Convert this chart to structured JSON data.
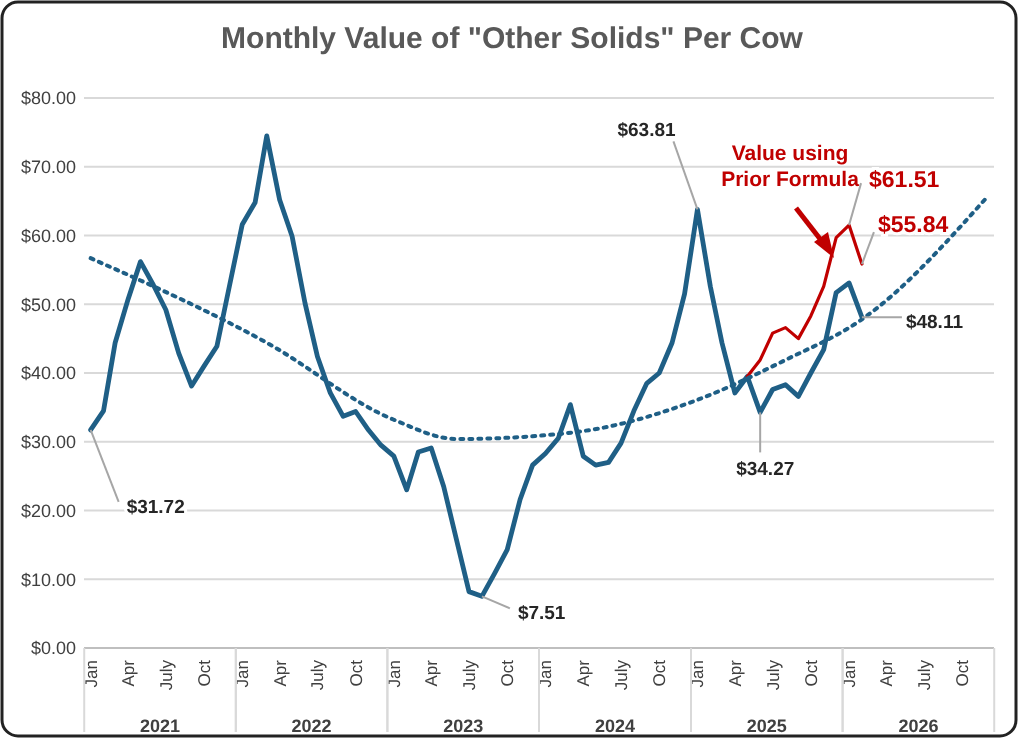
{
  "chart_data": {
    "type": "line",
    "title": "Monthly Value of \"Other Solids\" Per Cow",
    "x": [
      "2021-01",
      "2021-02",
      "2021-03",
      "2021-04",
      "2021-05",
      "2021-06",
      "2021-07",
      "2021-08",
      "2021-09",
      "2021-10",
      "2021-11",
      "2021-12",
      "2022-01",
      "2022-02",
      "2022-03",
      "2022-04",
      "2022-05",
      "2022-06",
      "2022-07",
      "2022-08",
      "2022-09",
      "2022-10",
      "2022-11",
      "2022-12",
      "2023-01",
      "2023-02",
      "2023-03",
      "2023-04",
      "2023-05",
      "2023-06",
      "2023-07",
      "2023-08",
      "2023-09",
      "2023-10",
      "2023-11",
      "2023-12",
      "2024-01",
      "2024-02",
      "2024-03",
      "2024-04",
      "2024-05",
      "2024-06",
      "2024-07",
      "2024-08",
      "2024-09",
      "2024-10",
      "2024-11",
      "2024-12",
      "2025-01",
      "2025-02",
      "2025-03",
      "2025-04",
      "2025-05",
      "2025-06",
      "2025-07",
      "2025-08",
      "2025-09",
      "2025-10",
      "2025-11",
      "2025-12",
      "2026-01",
      "2026-02"
    ],
    "series": [
      {
        "color": "#1f5f86",
        "values": [
          31.72,
          34.5,
          44.4,
          50.7,
          56.2,
          52.8,
          49.2,
          42.9,
          38.1,
          41.0,
          43.9,
          52.6,
          61.6,
          64.8,
          74.5,
          65.2,
          59.9,
          50.2,
          42.4,
          37.1,
          33.7,
          34.4,
          31.7,
          29.5,
          27.9,
          23.0,
          28.5,
          29.1,
          23.5,
          15.7,
          8.2,
          7.51,
          10.9,
          14.3,
          21.6,
          26.6,
          28.3,
          30.5,
          35.4,
          27.9,
          26.6,
          27.0,
          29.8,
          34.5,
          38.5,
          40.0,
          44.4,
          51.5,
          63.81,
          52.6,
          44.4,
          37.1,
          39.5,
          34.27,
          37.6,
          38.3,
          36.6,
          40.0,
          43.4,
          51.7,
          53.1,
          48.11
        ]
      },
      {
        "color": "#c00000",
        "x": [
          "2025-05",
          "2025-06",
          "2025-07",
          "2025-08",
          "2025-09",
          "2025-10",
          "2025-11",
          "2025-12",
          "2026-01",
          "2026-02"
        ],
        "values": [
          39.5,
          41.9,
          45.8,
          46.6,
          45.0,
          48.3,
          52.6,
          59.7,
          61.51,
          55.84
        ]
      },
      {
        "color": "#1f5f86",
        "line_style": "dotted",
        "x": [
          "2021-01",
          "2022-03",
          "2023-01",
          "2023-06",
          "2023-12",
          "2024-06",
          "2025-01",
          "2025-08",
          "2026-02",
          "2026-12"
        ],
        "values": [
          56.7,
          44.4,
          33.2,
          30.4,
          30.8,
          32.2,
          36.1,
          41.9,
          47.8,
          65.7
        ]
      }
    ],
    "xlim": [
      "2020-12-16",
      "2026-12-16"
    ],
    "xticks": [
      {
        "value": "2021-01",
        "label": "Jan"
      },
      {
        "value": "2021-04",
        "label": "Apr"
      },
      {
        "value": "2021-07",
        "label": "July"
      },
      {
        "value": "2021-10",
        "label": "Oct"
      },
      {
        "value": "2022-01",
        "label": "Jan"
      },
      {
        "value": "2022-04",
        "label": "Apr"
      },
      {
        "value": "2022-07",
        "label": "July"
      },
      {
        "value": "2022-10",
        "label": "Oct"
      },
      {
        "value": "2023-01",
        "label": "Jan"
      },
      {
        "value": "2023-04",
        "label": "Apr"
      },
      {
        "value": "2023-07",
        "label": "July"
      },
      {
        "value": "2023-10",
        "label": "Oct"
      },
      {
        "value": "2024-01",
        "label": "Jan"
      },
      {
        "value": "2024-04",
        "label": "Apr"
      },
      {
        "value": "2024-07",
        "label": "July"
      },
      {
        "value": "2024-10",
        "label": "Oct"
      },
      {
        "value": "2025-01",
        "label": "Jan"
      },
      {
        "value": "2025-04",
        "label": "Apr"
      },
      {
        "value": "2025-07",
        "label": "July"
      },
      {
        "value": "2025-10",
        "label": "Oct"
      },
      {
        "value": "2026-01",
        "label": "Jan"
      },
      {
        "value": "2026-04",
        "label": "Apr"
      },
      {
        "value": "2026-07",
        "label": "July"
      },
      {
        "value": "2026-10",
        "label": "Oct"
      }
    ],
    "ylim": [
      0,
      80
    ],
    "yticks": [
      {
        "value": 0,
        "label": "$0.00"
      },
      {
        "value": 10,
        "label": "$10.00"
      },
      {
        "value": 20,
        "label": "$20.00"
      },
      {
        "value": 30,
        "label": "$30.00"
      },
      {
        "value": 40,
        "label": "$40.00"
      },
      {
        "value": 50,
        "label": "$50.00"
      },
      {
        "value": 60,
        "label": "$60.00"
      },
      {
        "value": 70,
        "label": "$70.00"
      },
      {
        "value": 80,
        "label": "$80.00"
      }
    ],
    "grid": "y",
    "annotations": [
      {
        "text": "$31.72",
        "x": "2021-01",
        "y": 31.72
      },
      {
        "text": "$7.51",
        "x": "2023-08",
        "y": 7.51
      },
      {
        "text": "$63.81",
        "x": "2025-01",
        "y": 63.81
      },
      {
        "text": "$34.27",
        "x": "2025-06",
        "y": 34.27
      },
      {
        "text": "$48.11",
        "x": "2026-02",
        "y": 48.11
      },
      {
        "text": "$61.51",
        "x": "2026-01",
        "y": 61.51
      },
      {
        "text": "$55.84",
        "x": "2026-02",
        "y": 55.84
      },
      "Value using\nPrior Formula",
      "2021",
      "2022",
      "2023",
      "2024",
      "2025",
      "2026"
    ]
  }
}
